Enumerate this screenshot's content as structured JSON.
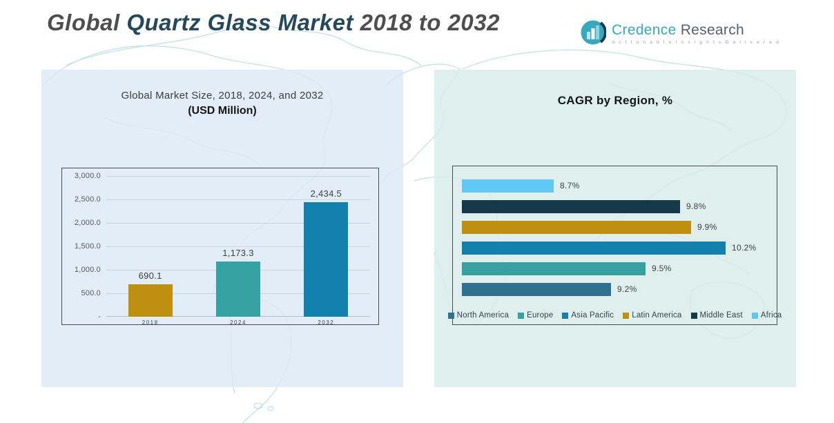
{
  "header": {
    "title": {
      "part1": "Global ",
      "part2": "Quartz Glass Market ",
      "part3": "2018 to 2032"
    },
    "logo": {
      "brand_primary": "Credence",
      "brand_secondary": " Research",
      "tagline": "A c t i o n a b l e   I n s i g h t s   D e l i v e r e d"
    }
  },
  "colors": {
    "title_gray": "#4d4e50",
    "title_teal": "#27485a",
    "panel_left_bg": "#E3EDF7",
    "panel_right_bg": "#D9ECEB",
    "chart_border": "#4a4a4a",
    "gridline": "#ccd3d8",
    "gold": "#BF8F0F",
    "teal": "#35A1A1",
    "blue": "#1380AD",
    "steel_blue": "#31718F",
    "dark_slate": "#16394A",
    "sky_blue": "#5FC8F4",
    "logo_teal": "#35a9bd"
  },
  "chart_data": [
    {
      "type": "bar",
      "title": "Global Market Size, 2018, 2024, and 2032",
      "subtitle": "(USD Million)",
      "categories": [
        "2018",
        "2024",
        "2032"
      ],
      "values": [
        690.1,
        1173.3,
        2434.5
      ],
      "value_labels": [
        "690.1",
        "1,173.3",
        "2,434.5"
      ],
      "bar_colors": [
        "#BF8F0F",
        "#35A1A1",
        "#1380AD"
      ],
      "ylabel": "USD Million",
      "ylim": [
        0,
        3000
      ],
      "ytick_labels_bottom_to_top": [
        "-",
        "500.0",
        "1,000.0",
        "1,500.0",
        "2,000.0",
        "2,500.0",
        "3,000.0"
      ],
      "grid": true,
      "legend_position": "none"
    },
    {
      "type": "bar-horizontal",
      "title": "CAGR by Region, %",
      "rows_top_to_bottom": [
        {
          "region": "Africa",
          "value": 8.7,
          "label": "8.7%",
          "color": "#5FC8F4"
        },
        {
          "region": "Middle East",
          "value": 9.8,
          "label": "9.8%",
          "color": "#16394A"
        },
        {
          "region": "Latin America",
          "value": 9.9,
          "label": "9.9%",
          "color": "#BF8F0F"
        },
        {
          "region": "Asia Pacific",
          "value": 10.2,
          "label": "10.2%",
          "color": "#1380AD"
        },
        {
          "region": "Europe",
          "value": 9.5,
          "label": "9.5%",
          "color": "#35A1A1"
        },
        {
          "region": "North America",
          "value": 9.2,
          "label": "9.2%",
          "color": "#31718F"
        }
      ],
      "axis_min": 7.9,
      "axis_max": 10.2,
      "grid": false,
      "legend_position": "bottom",
      "legend": [
        {
          "label": "North America",
          "color": "#31718F"
        },
        {
          "label": "Europe",
          "color": "#35A1A1"
        },
        {
          "label": "Asia Pacific",
          "color": "#1380AD"
        },
        {
          "label": "Latin America",
          "color": "#BF8F0F"
        },
        {
          "label": "Middle East",
          "color": "#16394A"
        },
        {
          "label": "Africa",
          "color": "#5FC8F4"
        }
      ]
    }
  ]
}
